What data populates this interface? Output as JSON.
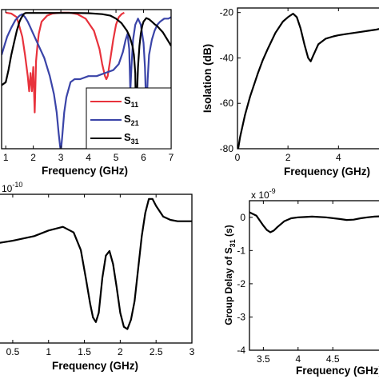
{
  "colors": {
    "s11": "#e8323c",
    "s21": "#3a44a8",
    "s31": "#000000",
    "axis": "#000000"
  },
  "chart_data": [
    {
      "id": "a",
      "type": "line",
      "xlabel": "Frequency (GHz)",
      "ylabel": "",
      "xlim": [
        0.85,
        7
      ],
      "ylim": [
        -45,
        1
      ],
      "xticks": [
        1,
        2,
        3,
        4,
        5,
        6,
        7
      ],
      "yticks": [],
      "grid": false,
      "legend": {
        "position": "lower-left",
        "entries": [
          "S11",
          "S21",
          "S31"
        ]
      },
      "legend_labels": [
        {
          "base": "S",
          "sub": "11"
        },
        {
          "base": "S",
          "sub": "21"
        },
        {
          "base": "S",
          "sub": "31"
        }
      ],
      "series": [
        {
          "name": "S11",
          "color_key": "s11",
          "x": [
            1.0,
            1.2,
            1.4,
            1.6,
            1.7,
            1.8,
            1.85,
            1.9,
            1.95,
            2.0,
            2.05,
            2.1,
            2.15,
            2.2,
            2.3,
            2.5,
            2.7,
            3.0,
            3.3,
            3.6,
            3.9,
            4.2,
            4.4,
            4.5,
            4.6,
            4.65,
            4.7,
            4.8,
            4.9,
            5.0,
            5.1,
            5.2,
            5.3
          ],
          "y": [
            0,
            -0.3,
            -1.5,
            -8,
            -14,
            -21,
            -26,
            -20,
            -26,
            -18,
            -33,
            -16,
            -11,
            -7,
            -3,
            -1,
            -0.3,
            0,
            0,
            -0.5,
            -2,
            -6,
            -12,
            -17,
            -21,
            -22,
            -21,
            -15,
            -9,
            -4,
            -1.5,
            -0.5,
            0
          ]
        },
        {
          "name": "S21",
          "color_key": "s21",
          "x": [
            0.85,
            0.95,
            1.05,
            1.2,
            1.35,
            1.5,
            1.6,
            1.7,
            1.8,
            1.9,
            2.0,
            2.2,
            2.4,
            2.6,
            2.75,
            2.85,
            2.92,
            2.97,
            3.0,
            3.05,
            3.12,
            3.2,
            3.35,
            3.5,
            3.7,
            4.0,
            4.3,
            4.6,
            4.9,
            5.1,
            5.25,
            5.35,
            5.42,
            5.48,
            5.52,
            5.56,
            5.62,
            5.7,
            5.8,
            5.9,
            6.0,
            6.05,
            6.1,
            6.15,
            6.2,
            6.3,
            6.4,
            6.5,
            6.6,
            6.75,
            6.9,
            7.0
          ],
          "y": [
            -14,
            -11,
            -8,
            -5,
            -2.5,
            -1,
            -0.5,
            -1.5,
            -3,
            -5,
            -7,
            -11,
            -15,
            -21,
            -27,
            -33,
            -40,
            -44,
            -46,
            -41,
            -33,
            -28,
            -23,
            -22,
            -22,
            -21,
            -21,
            -20,
            -19,
            -17,
            -13,
            -9,
            -7,
            -12,
            -26,
            -18,
            -9,
            -4,
            -2,
            -4,
            -10,
            -18,
            -33,
            -22,
            -14,
            -9,
            -6,
            -4,
            -3,
            -2,
            -2,
            -1.5
          ]
        },
        {
          "name": "S31",
          "color_key": "s31",
          "x": [
            0.85,
            1.0,
            1.1,
            1.2,
            1.3,
            1.4,
            1.5,
            1.55,
            1.6,
            1.65,
            1.7,
            1.75,
            1.8,
            1.85,
            1.9,
            1.95,
            2.0,
            2.3,
            2.6,
            3.0,
            3.5,
            4.0,
            4.5,
            4.8,
            5.0,
            5.2,
            5.4,
            5.5,
            5.6,
            5.65,
            5.7,
            5.73,
            5.75,
            5.8,
            5.85,
            5.9,
            5.95,
            6.0,
            6.1,
            6.2,
            6.3,
            6.4,
            6.5,
            6.6,
            6.7,
            6.8,
            6.9,
            7.0
          ],
          "y": [
            -24,
            -23,
            -19,
            -14,
            -10,
            -6,
            -3,
            -2,
            -1.2,
            -0.5,
            -0.2,
            -0.1,
            -0.1,
            -0.1,
            -0.1,
            -0.1,
            -0.1,
            -0.1,
            -0.1,
            -0.1,
            -0.1,
            -0.2,
            -0.5,
            -1,
            -2,
            -3.5,
            -6,
            -8,
            -11,
            -14,
            -20,
            -38,
            -30,
            -18,
            -11,
            -7,
            -4.5,
            -3,
            -1.8,
            -2.2,
            -3,
            -3.8,
            -4.5,
            -5.5,
            -6.5,
            -8,
            -9.5,
            -11
          ]
        }
      ]
    },
    {
      "id": "b",
      "type": "line",
      "xlabel": "Frequency (GHz)",
      "ylabel": "Isolation (dB)",
      "xlim": [
        0,
        5.7
      ],
      "ylim": [
        -80,
        -18
      ],
      "xticks": [
        0,
        2,
        4
      ],
      "yticks": [
        -80,
        -60,
        -40,
        -20
      ],
      "grid": false,
      "series": [
        {
          "name": "",
          "color_key": "s31",
          "x": [
            0.03,
            0.1,
            0.3,
            0.5,
            0.8,
            1.0,
            1.2,
            1.5,
            1.8,
            2.0,
            2.2,
            2.35,
            2.5,
            2.65,
            2.8,
            2.9,
            3.0,
            3.2,
            3.5,
            3.8,
            4.0,
            4.3,
            4.6,
            4.9,
            5.2,
            5.5,
            5.7
          ],
          "y": [
            -80,
            -75,
            -65,
            -57,
            -47,
            -41,
            -36,
            -29,
            -24,
            -22,
            -20.5,
            -22,
            -27,
            -34,
            -40,
            -41.5,
            -39,
            -34,
            -31.5,
            -30.5,
            -30,
            -29.5,
            -29,
            -28.5,
            -28,
            -27.5,
            -27
          ]
        }
      ]
    },
    {
      "id": "c",
      "type": "line",
      "xlabel": "Frequency (GHz)",
      "ylabel": "",
      "exponent": {
        "base": "10",
        "power": "-10"
      },
      "xlim": [
        0.3,
        3.0
      ],
      "ylim": [
        -2.6,
        0.6
      ],
      "xticks": [
        0.5,
        1,
        1.5,
        2,
        2.5,
        3
      ],
      "xticklabels": [
        "0.5",
        "1",
        "1.5",
        "2",
        "2.5",
        "3"
      ],
      "yticks": [],
      "grid": false,
      "series": [
        {
          "name": "",
          "color_key": "s31",
          "x": [
            0.3,
            0.5,
            0.8,
            1.0,
            1.2,
            1.35,
            1.45,
            1.52,
            1.58,
            1.62,
            1.66,
            1.7,
            1.75,
            1.8,
            1.85,
            1.9,
            1.95,
            2.0,
            2.05,
            2.1,
            2.15,
            2.2,
            2.25,
            2.3,
            2.35,
            2.4,
            2.45,
            2.5,
            2.6,
            2.7,
            2.8,
            3.0
          ],
          "y": [
            -0.45,
            -0.4,
            -0.3,
            -0.18,
            -0.1,
            -0.22,
            -0.6,
            -1.2,
            -1.75,
            -2.05,
            -2.15,
            -1.95,
            -1.2,
            -0.72,
            -0.62,
            -0.9,
            -1.4,
            -1.95,
            -2.25,
            -2.3,
            -2.1,
            -1.7,
            -1.0,
            -0.3,
            0.2,
            0.5,
            0.5,
            0.35,
            0.12,
            0.05,
            0.02,
            0.02
          ]
        }
      ]
    },
    {
      "id": "d",
      "type": "line",
      "xlabel": "Frequency (GHz)",
      "ylabel": "Group Delay of S31 (s)",
      "exponent": {
        "base": "x 10",
        "power": "-9"
      },
      "xlim": [
        3.3,
        5.2
      ],
      "ylim": [
        -4,
        0.5
      ],
      "xticks": [
        3.5,
        4,
        4.5
      ],
      "xticklabels": [
        "3.5",
        "4",
        "4.5"
      ],
      "yticks": [
        -4,
        -3,
        -2,
        -1,
        0
      ],
      "grid": false,
      "series": [
        {
          "name": "",
          "color_key": "s31",
          "x": [
            3.3,
            3.4,
            3.5,
            3.55,
            3.6,
            3.65,
            3.7,
            3.8,
            3.9,
            4.0,
            4.1,
            4.2,
            4.4,
            4.6,
            4.7,
            4.8,
            4.9,
            5.0,
            5.1,
            5.2
          ],
          "y": [
            0.15,
            0.05,
            -0.25,
            -0.38,
            -0.45,
            -0.4,
            -0.3,
            -0.12,
            -0.03,
            0,
            0.01,
            0.02,
            0.0,
            -0.05,
            -0.08,
            -0.07,
            -0.03,
            0.0,
            0.02,
            0.03
          ]
        }
      ]
    }
  ]
}
